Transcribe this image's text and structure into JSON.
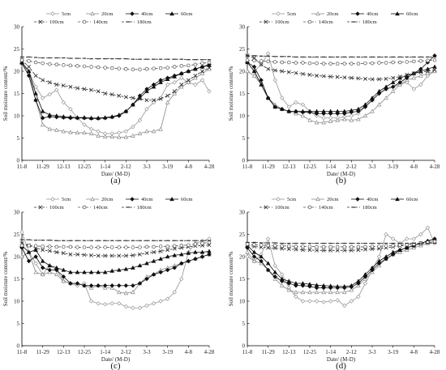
{
  "chart_data": [
    {
      "type": "line",
      "panel_label": "(a)",
      "xlabel": "Date/ (M-D)",
      "ylabel": "Soil moisture content/%",
      "ylim": [
        0,
        30
      ],
      "yticks": [
        "0",
        "5",
        "10",
        "15",
        "20",
        "25",
        "30"
      ],
      "xticks": [
        "11-8",
        "11-29",
        "12-13",
        "12-25",
        "1-14",
        "2-12",
        "3-3",
        "3-19",
        "4-8",
        "4-28"
      ],
      "grid": false,
      "legend": [
        "5cm",
        "20cm",
        "40cm",
        "60cm",
        "100cm",
        "140cm",
        "180cm"
      ],
      "series": [
        {
          "name": "5cm",
          "values": [
            21.5,
            20,
            16.5,
            14,
            14.8,
            15.8,
            13,
            11.5,
            9.5,
            8,
            7,
            6.5,
            6,
            6,
            6.2,
            6.5,
            7.5,
            9,
            11.5,
            13,
            14,
            17,
            17.5,
            18.5,
            17.5,
            17,
            18,
            15.5
          ]
        },
        {
          "name": "20cm",
          "values": [
            22,
            20,
            13.5,
            8,
            7,
            6.8,
            6.5,
            6.3,
            6.2,
            6.2,
            6,
            5.5,
            5.3,
            5.3,
            5.2,
            5.2,
            5.5,
            6,
            6.5,
            6.5,
            7,
            13,
            15,
            16.5,
            17.5,
            18.5,
            19.5,
            20.5
          ]
        },
        {
          "name": "40cm",
          "values": [
            21.8,
            19,
            13.5,
            9.5,
            9.8,
            9.7,
            9.6,
            9.5,
            9.5,
            9.5,
            9.4,
            9.4,
            9.5,
            9.7,
            10,
            11,
            12.5,
            14.5,
            16,
            17,
            18,
            18.5,
            19,
            19.5,
            20,
            20.5,
            21,
            21.5
          ]
        },
        {
          "name": "60cm",
          "values": [
            22,
            20,
            15,
            11,
            10.2,
            10,
            9.8,
            9.7,
            9.6,
            9.6,
            9.5,
            9.5,
            9.6,
            9.8,
            10.2,
            11,
            12.5,
            14,
            15.5,
            16.5,
            17.5,
            18.2,
            18.8,
            19.5,
            20,
            20.5,
            21,
            21.3
          ]
        },
        {
          "name": "100cm",
          "values": [
            22.5,
            21,
            19,
            18,
            17.5,
            17,
            16.8,
            16.5,
            16.2,
            16,
            15.8,
            15.5,
            15,
            14.8,
            14.5,
            14.2,
            14,
            13.8,
            13.5,
            13.5,
            13.8,
            14.5,
            15.5,
            17,
            18,
            19,
            20,
            20.8
          ]
        },
        {
          "name": "140cm",
          "values": [
            22.5,
            22.3,
            22,
            21.8,
            21.6,
            21.5,
            21.4,
            21.3,
            21.2,
            21.1,
            21,
            20.9,
            20.8,
            20.7,
            20.6,
            20.5,
            20.4,
            20.4,
            20.5,
            20.6,
            20.7,
            20.8,
            21,
            21.2,
            21.3,
            21.5,
            21.8,
            22
          ]
        },
        {
          "name": "180cm",
          "values": [
            23.2,
            23.2,
            23.1,
            23,
            23,
            23,
            23,
            22.9,
            22.9,
            22.9,
            22.8,
            22.8,
            22.8,
            22.8,
            22.8,
            22.8,
            22.7,
            22.7,
            22.7,
            22.7,
            22.7,
            22.7,
            22.7,
            22.7,
            22.6,
            22.6,
            22.6,
            22.6
          ]
        }
      ]
    },
    {
      "type": "line",
      "panel_label": "(b)",
      "xlabel": "Date/ (M-D)",
      "ylabel": "Soil moisture content/%",
      "ylim": [
        0,
        30
      ],
      "yticks": [
        "0",
        "5",
        "10",
        "15",
        "20",
        "25",
        "30"
      ],
      "xticks": [
        "11-8",
        "11-29",
        "12-13",
        "12-25",
        "1-14",
        "2-12",
        "3-3",
        "3-19",
        "4-8",
        "4-28"
      ],
      "grid": false,
      "legend": [
        "5cm",
        "20cm",
        "40cm",
        "60cm",
        "100cm",
        "140cm",
        "180cm"
      ],
      "series": [
        {
          "name": "5cm",
          "values": [
            22,
            20,
            21.5,
            24,
            18,
            14,
            12,
            13,
            12.5,
            11,
            10,
            9.5,
            9.5,
            9.5,
            9.8,
            10,
            10.5,
            12,
            13.5,
            15,
            16,
            16.5,
            17,
            17.5,
            16,
            17,
            19,
            20
          ]
        },
        {
          "name": "20cm",
          "values": [
            20,
            19,
            17,
            14,
            12.5,
            11.5,
            11,
            10.5,
            10,
            9,
            8.5,
            8.5,
            8.8,
            9,
            9.2,
            9,
            9.2,
            10,
            11,
            12.5,
            14,
            15.5,
            17,
            18,
            18.5,
            19,
            19.5,
            20
          ]
        },
        {
          "name": "40cm",
          "values": [
            22,
            21,
            18,
            14,
            12,
            11.5,
            11,
            11,
            10.8,
            10.8,
            10.5,
            10.5,
            10.5,
            10.5,
            10.5,
            10.8,
            11,
            12,
            13.5,
            15,
            16,
            16.5,
            17.5,
            18.5,
            19.5,
            20.5,
            22,
            23.5
          ]
        },
        {
          "name": "60cm",
          "values": [
            22,
            20,
            17,
            14,
            12,
            11.5,
            11,
            11,
            11,
            11,
            11,
            11,
            11,
            11,
            11,
            11.2,
            11.5,
            12.5,
            14,
            15.5,
            16.5,
            17.5,
            18.5,
            19,
            19.5,
            20,
            20.5,
            21
          ]
        },
        {
          "name": "100cm",
          "values": [
            23.5,
            23,
            21.5,
            20.5,
            20.2,
            20,
            19.8,
            19.6,
            19.4,
            19.2,
            19,
            18.9,
            18.8,
            18.7,
            18.6,
            18.5,
            18.4,
            18.3,
            18.2,
            18.2,
            18.3,
            18.5,
            18.8,
            19.2,
            19.5,
            19.8,
            20,
            20.3
          ]
        },
        {
          "name": "140cm",
          "values": [
            22.5,
            22.4,
            22.3,
            22.2,
            22.1,
            22,
            22,
            21.9,
            21.9,
            21.8,
            21.8,
            21.7,
            21.7,
            21.7,
            21.7,
            21.7,
            21.7,
            21.8,
            21.8,
            21.9,
            21.9,
            22,
            22,
            22.1,
            22.2,
            22.3,
            22.4,
            22.5
          ]
        },
        {
          "name": "180cm",
          "values": [
            23.5,
            23.5,
            23.4,
            23.4,
            23.3,
            23.3,
            23.3,
            23.2,
            23.2,
            23.2,
            23.2,
            23.2,
            23.2,
            23.2,
            23.2,
            23.2,
            23.2,
            23.2,
            23.2,
            23.2,
            23.2,
            23.2,
            23.2,
            23.2,
            23.2,
            23.2,
            23.2,
            23.2
          ]
        }
      ]
    },
    {
      "type": "line",
      "panel_label": "(c)",
      "xlabel": "Date/ (M-D)",
      "ylabel": "Soil moisture content/%",
      "ylim": [
        0,
        30
      ],
      "yticks": [
        "0",
        "5",
        "10",
        "15",
        "20",
        "25",
        "30"
      ],
      "xticks": [
        "11-8",
        "11-29",
        "12-13",
        "12-25",
        "1-14",
        "2-12",
        "3-3",
        "3-19",
        "4-8",
        "4-28"
      ],
      "grid": false,
      "legend": [
        "5cm",
        "20cm",
        "40cm",
        "60cm",
        "100cm",
        "140cm",
        "180cm"
      ],
      "series": [
        {
          "name": "5cm",
          "values": [
            25.5,
            21,
            18.5,
            16,
            18,
            17,
            14.5,
            14,
            13.5,
            14,
            10,
            9.5,
            9.3,
            9.5,
            9.5,
            8.8,
            8.5,
            8.5,
            9,
            9.5,
            10,
            10.5,
            12,
            15,
            21,
            23,
            23.5,
            24
          ]
        },
        {
          "name": "20cm",
          "values": [
            20,
            21,
            16.5,
            16,
            16.5,
            16,
            14.5,
            14,
            14,
            13.5,
            13,
            13.5,
            13,
            13,
            12,
            11.8,
            12,
            14,
            15.5,
            16,
            17,
            17.5,
            18,
            18.5,
            19,
            19.5,
            20,
            20.5
          ]
        },
        {
          "name": "40cm",
          "values": [
            22,
            19,
            20,
            17.5,
            17,
            17,
            15.5,
            14,
            14,
            13.5,
            13.5,
            13.5,
            13.5,
            13.5,
            13.5,
            13.5,
            13.5,
            14,
            15,
            16,
            16.5,
            17,
            17.5,
            18.5,
            19,
            19.5,
            20,
            20.5
          ]
        },
        {
          "name": "60cm",
          "values": [
            22.5,
            21,
            21.5,
            19,
            18,
            17.5,
            17,
            16.5,
            16.5,
            16.5,
            16.5,
            16.5,
            16.5,
            16.8,
            17,
            17.2,
            17.5,
            18,
            18.5,
            19,
            19.5,
            20,
            20.3,
            20.5,
            20.8,
            21,
            21,
            21.2
          ]
        },
        {
          "name": "100cm",
          "values": [
            23,
            22.5,
            22,
            21.5,
            21.3,
            21,
            20.8,
            20.5,
            20.5,
            20.4,
            20.3,
            20.2,
            20.2,
            20.2,
            20.2,
            20.2,
            20.3,
            20.5,
            20.8,
            21,
            21.2,
            21.5,
            21.8,
            22,
            22.2,
            22.4,
            22.5,
            22.6
          ]
        },
        {
          "name": "140cm",
          "values": [
            22.5,
            22.5,
            22.4,
            22.3,
            22.3,
            22.2,
            22.2,
            22.2,
            22.1,
            22.1,
            22.1,
            22.1,
            22.1,
            22.1,
            22.1,
            22.1,
            22.1,
            22.1,
            22.2,
            22.2,
            22.3,
            22.3,
            22.4,
            22.5,
            22.6,
            22.8,
            23,
            23.2
          ]
        },
        {
          "name": "180cm",
          "values": [
            23.8,
            23.8,
            23.7,
            23.7,
            23.7,
            23.6,
            23.6,
            23.6,
            23.6,
            23.6,
            23.6,
            23.6,
            23.6,
            23.6,
            23.6,
            23.6,
            23.6,
            23.6,
            23.6,
            23.6,
            23.6,
            23.6,
            23.6,
            23.6,
            23.6,
            23.6,
            23.6,
            23.6
          ]
        }
      ]
    },
    {
      "type": "line",
      "panel_label": "(d)",
      "xlabel": "Date/ (M-D)",
      "ylabel": "Soil moisture content/%",
      "ylim": [
        0,
        30
      ],
      "yticks": [
        "0",
        "5",
        "10",
        "15",
        "20",
        "25",
        "30"
      ],
      "xticks": [
        "11-8",
        "11-29",
        "12-13",
        "12-25",
        "1-14",
        "2-12",
        "3-3",
        "3-19",
        "4-8",
        "4-28"
      ],
      "grid": false,
      "legend": [
        "5cm",
        "20cm",
        "40cm",
        "60cm",
        "100cm",
        "140cm",
        "180cm"
      ],
      "series": [
        {
          "name": "5cm",
          "values": [
            20,
            19,
            20.5,
            24,
            18,
            16,
            13,
            11,
            10,
            10,
            10,
            9.8,
            10,
            10.2,
            9,
            10,
            11,
            14,
            17,
            20,
            25,
            24,
            23,
            24,
            24,
            25,
            26.5,
            23
          ]
        },
        {
          "name": "20cm",
          "values": [
            21,
            19,
            18.5,
            17,
            15,
            13.5,
            12.5,
            12,
            12,
            12,
            12,
            12,
            12,
            12,
            12,
            12.5,
            13.5,
            15,
            16.5,
            18,
            19.5,
            20.5,
            21,
            21.5,
            22,
            22.5,
            23,
            23.5
          ]
        },
        {
          "name": "40cm",
          "values": [
            22,
            20,
            19,
            17,
            15.5,
            14.5,
            14,
            13.5,
            13.5,
            13.3,
            13,
            13,
            13,
            13,
            13,
            13.2,
            14,
            15.5,
            17,
            18.5,
            19.5,
            20.5,
            21.5,
            22,
            22.5,
            23,
            23.5,
            24
          ]
        },
        {
          "name": "60cm",
          "values": [
            22.5,
            21,
            20,
            18.5,
            16.5,
            15,
            14.5,
            14,
            14,
            13.8,
            13.6,
            13.5,
            13.4,
            13.3,
            13.3,
            13.5,
            14.5,
            16,
            17.5,
            19,
            20,
            21,
            21.5,
            22,
            22.5,
            23,
            23.5,
            24
          ]
        },
        {
          "name": "100cm",
          "values": [
            22.5,
            22.3,
            22.1,
            22,
            21.9,
            21.8,
            21.7,
            21.6,
            21.5,
            21.5,
            21.4,
            21.4,
            21.4,
            21.4,
            21.4,
            21.4,
            21.5,
            21.6,
            21.7,
            21.8,
            22,
            22.2,
            22.4,
            22.6,
            22.8,
            23,
            23.2,
            23.3
          ]
        },
        {
          "name": "140cm",
          "values": [
            22.8,
            22.7,
            22.6,
            22.5,
            22.5,
            22.4,
            22.4,
            22.3,
            22.3,
            22.3,
            22.2,
            22.2,
            22.2,
            22.2,
            22.2,
            22.2,
            22.2,
            22.2,
            22.3,
            22.3,
            22.4,
            22.5,
            22.6,
            22.7,
            22.8,
            23,
            23.2,
            23.4
          ]
        },
        {
          "name": "180cm",
          "values": [
            23.2,
            23.2,
            23.1,
            23.1,
            23.1,
            23,
            23,
            23,
            23,
            23,
            23,
            23,
            23,
            23,
            23,
            23,
            23,
            23,
            23,
            23,
            23,
            23,
            23,
            23,
            23,
            23,
            23,
            23
          ]
        }
      ]
    }
  ],
  "styles": {
    "5cm": {
      "color": "#9a9a9a",
      "dash": "",
      "marker": "diamond-open"
    },
    "20cm": {
      "color": "#8c8c8c",
      "dash": "",
      "marker": "triangle-open"
    },
    "40cm": {
      "color": "#111111",
      "dash": "",
      "marker": "diamond-filled"
    },
    "60cm": {
      "color": "#111111",
      "dash": "",
      "marker": "triangle-filled"
    },
    "100cm": {
      "color": "#333333",
      "dash": "3,2",
      "marker": "x-mark"
    },
    "140cm": {
      "color": "#555555",
      "dash": "3,2",
      "marker": "circle-open"
    },
    "180cm": {
      "color": "#333333",
      "dash": "3,2",
      "marker": "dash-mark"
    }
  }
}
